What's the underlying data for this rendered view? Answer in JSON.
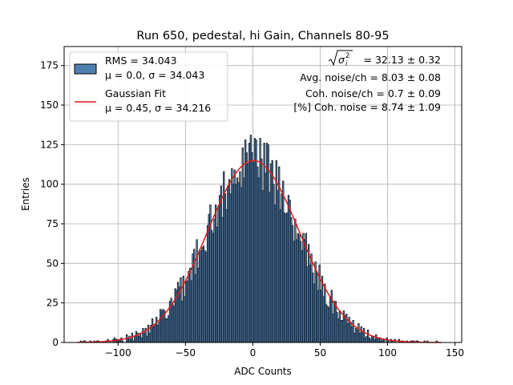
{
  "chart_data": {
    "type": "bar",
    "title": "Run 650, pedestal, hi Gain, Channels 80-95",
    "xlabel": "ADC Counts",
    "ylabel": "Entries",
    "xlim": [
      -140,
      155
    ],
    "ylim": [
      0,
      187
    ],
    "xticks": [
      -100,
      -50,
      0,
      50,
      100,
      150
    ],
    "yticks": [
      0,
      25,
      50,
      75,
      100,
      125,
      150,
      175
    ],
    "grid": true,
    "legend_position": "top-left",
    "histogram": {
      "name": "RMS = 34.043",
      "stats_label": "μ = 0.0, σ = 34.043",
      "bin_width": 1,
      "x_start": -130,
      "x_end": 140,
      "mean": 0.0,
      "sigma": 34.043,
      "peak": 115,
      "color": "#4f7fb0"
    },
    "fit": {
      "name": "Gaussian Fit",
      "stats_label": "μ = 0.45, σ = 34.216",
      "mu": 0.45,
      "sigma": 34.216,
      "amplitude": 115,
      "color": "#e31a1c"
    },
    "annotations": [
      {
        "prefix": "",
        "value": " = 32.13 ± 0.32"
      },
      {
        "prefix": "Avg. noise/ch = 8.03 ± 0.08",
        "value": ""
      },
      {
        "prefix": "Coh. noise/ch = 0.7 ± 0.09",
        "value": ""
      },
      {
        "prefix": "[%] Coh. noise = 8.74 ± 1.09",
        "value": ""
      }
    ]
  }
}
